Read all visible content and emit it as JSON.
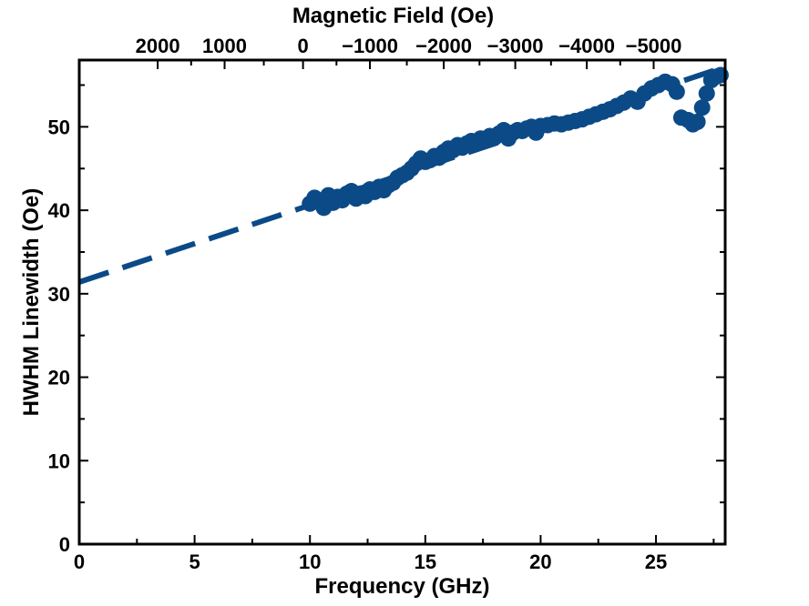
{
  "chart_data": {
    "type": "scatter",
    "title": "",
    "xlabel": "Frequency (GHz)",
    "ylabel": "HWHM Linewidth (Oe)",
    "top_xlabel": "Magnetic Field (Oe)",
    "xlim": [
      0,
      28
    ],
    "ylim": [
      0,
      58
    ],
    "x_ticks": [
      0,
      5,
      10,
      15,
      20,
      25
    ],
    "x_tick_labels": [
      "0",
      "5",
      "10",
      "15",
      "20",
      "25"
    ],
    "y_ticks": [
      0,
      10,
      20,
      30,
      40,
      50
    ],
    "y_tick_labels": [
      "0",
      "10",
      "20",
      "30",
      "40",
      "50"
    ],
    "top_ticks": [
      {
        "label": "2000",
        "x": 3.4
      },
      {
        "label": "1000",
        "x": 6.3
      },
      {
        "label": "0",
        "x": 9.7
      },
      {
        "label": "−1000",
        "x": 12.6
      },
      {
        "label": "−2000",
        "x": 15.8
      },
      {
        "label": "−3000",
        "x": 18.9
      },
      {
        "label": "−4000",
        "x": 22.0
      },
      {
        "label": "−5000",
        "x": 24.9
      }
    ],
    "color": "#0b4a87",
    "fit_line": {
      "style": "dashed",
      "x": [
        0,
        28
      ],
      "y": [
        31.4,
        57.2
      ]
    },
    "points": [
      [
        10.0,
        40.8
      ],
      [
        10.2,
        41.5
      ],
      [
        10.4,
        41.0
      ],
      [
        10.6,
        40.3
      ],
      [
        10.8,
        41.8
      ],
      [
        11.0,
        40.9
      ],
      [
        11.2,
        41.6
      ],
      [
        11.4,
        41.2
      ],
      [
        11.6,
        42.0
      ],
      [
        11.8,
        42.3
      ],
      [
        12.0,
        41.4
      ],
      [
        12.2,
        42.0
      ],
      [
        12.4,
        41.7
      ],
      [
        12.6,
        42.5
      ],
      [
        12.8,
        42.2
      ],
      [
        13.0,
        42.8
      ],
      [
        13.2,
        42.4
      ],
      [
        13.4,
        43.0
      ],
      [
        13.6,
        43.3
      ],
      [
        13.8,
        43.9
      ],
      [
        14.0,
        44.2
      ],
      [
        14.2,
        44.5
      ],
      [
        14.4,
        45.0
      ],
      [
        14.6,
        45.6
      ],
      [
        14.8,
        46.2
      ],
      [
        15.0,
        45.8
      ],
      [
        15.2,
        46.0
      ],
      [
        15.4,
        46.5
      ],
      [
        15.6,
        46.3
      ],
      [
        15.8,
        47.0
      ],
      [
        16.0,
        47.4
      ],
      [
        16.2,
        47.2
      ],
      [
        16.4,
        47.8
      ],
      [
        16.6,
        47.5
      ],
      [
        16.8,
        48.0
      ],
      [
        17.0,
        48.3
      ],
      [
        17.2,
        48.1
      ],
      [
        17.4,
        48.6
      ],
      [
        17.6,
        48.4
      ],
      [
        17.8,
        48.9
      ],
      [
        18.0,
        48.7
      ],
      [
        18.2,
        49.2
      ],
      [
        18.4,
        49.6
      ],
      [
        18.6,
        48.6
      ],
      [
        18.8,
        49.3
      ],
      [
        19.0,
        49.6
      ],
      [
        19.2,
        49.5
      ],
      [
        19.4,
        49.8
      ],
      [
        19.6,
        50.0
      ],
      [
        19.8,
        49.3
      ],
      [
        20.0,
        50.1
      ],
      [
        20.3,
        50.2
      ],
      [
        20.6,
        50.4
      ],
      [
        20.9,
        50.3
      ],
      [
        21.2,
        50.5
      ],
      [
        21.5,
        50.7
      ],
      [
        21.8,
        50.9
      ],
      [
        22.1,
        51.2
      ],
      [
        22.4,
        51.5
      ],
      [
        22.7,
        51.8
      ],
      [
        23.0,
        52.1
      ],
      [
        23.3,
        52.5
      ],
      [
        23.6,
        52.9
      ],
      [
        23.9,
        53.4
      ],
      [
        24.2,
        53.0
      ],
      [
        24.5,
        54.0
      ],
      [
        24.8,
        54.6
      ],
      [
        25.1,
        55.0
      ],
      [
        25.4,
        55.4
      ],
      [
        25.7,
        55.1
      ],
      [
        25.9,
        54.2
      ],
      [
        26.1,
        51.1
      ],
      [
        26.4,
        50.8
      ],
      [
        26.6,
        50.3
      ],
      [
        26.8,
        50.6
      ],
      [
        27.0,
        52.3
      ],
      [
        27.2,
        54.0
      ],
      [
        27.4,
        55.6
      ],
      [
        27.6,
        56.0
      ],
      [
        27.8,
        56.2
      ]
    ]
  }
}
